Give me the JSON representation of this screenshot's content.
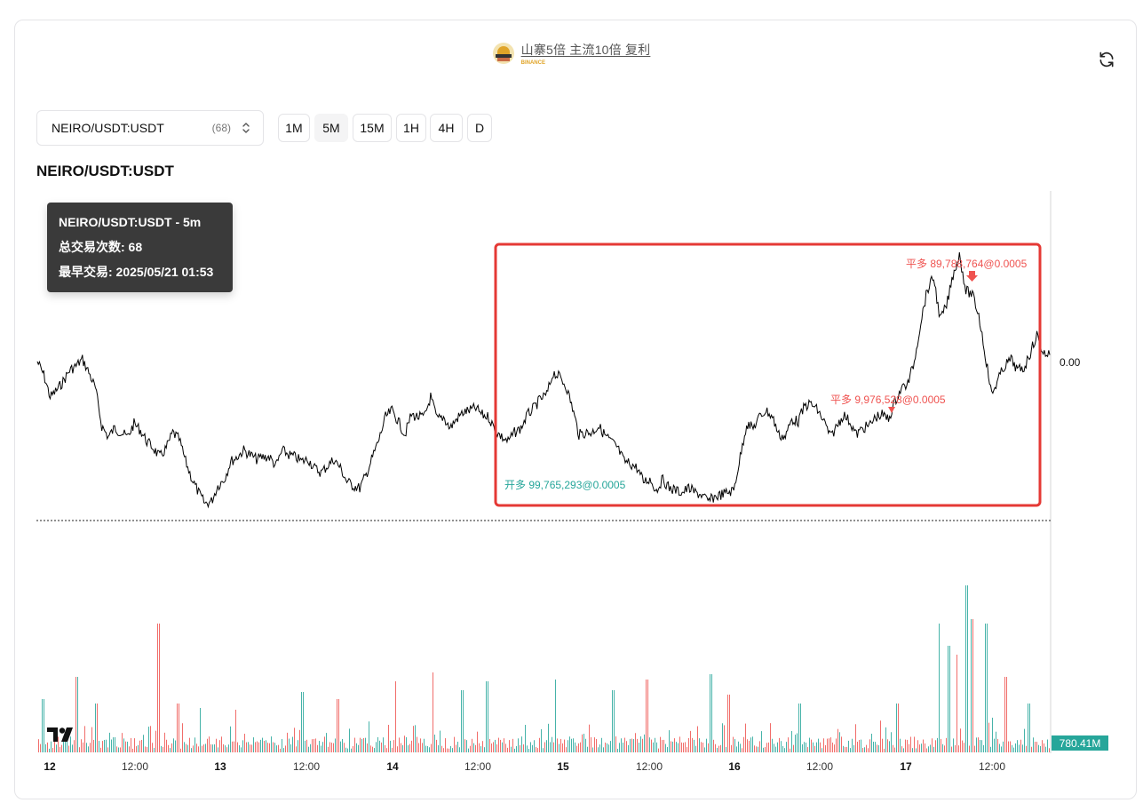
{
  "header": {
    "title": "山寨5倍 主流10倍 复利",
    "subtitle": "BINANCE"
  },
  "pair_selector": {
    "value": "NEIRO/USDT:USDT",
    "count": "(68)"
  },
  "timeframes": [
    {
      "label": "1M",
      "active": false
    },
    {
      "label": "5M",
      "active": true
    },
    {
      "label": "15M",
      "active": false
    },
    {
      "label": "1H",
      "active": false
    },
    {
      "label": "4H",
      "active": false
    },
    {
      "label": "D",
      "active": false
    }
  ],
  "chart_title": "NEIRO/USDT:USDT",
  "tooltip": {
    "line1": "NEIRO/USDT:USDT - 5m",
    "line2": "总交易次数: 68",
    "line3": "最早交易: 2025/05/21 01:53"
  },
  "chart_data": {
    "type": "line",
    "series": [
      {
        "values": [
          0.0,
          -0.6,
          -1.6,
          -1.3,
          -0.9,
          -0.4,
          -0.2,
          0.1,
          -0.5,
          -1.2,
          -2.9,
          -3.4,
          -3.0,
          -3.2,
          -3.4,
          -2.8,
          -3.1,
          -3.6,
          -3.9,
          -4.3,
          -3.9,
          -3.2,
          -3.5,
          -4.5,
          -5.3,
          -5.9,
          -6.4,
          -6.3,
          -5.6,
          -5.3,
          -4.5,
          -4.3,
          -4.0,
          -4.2,
          -4.4,
          -4.3,
          -4.3,
          -4.7,
          -4.0,
          -4.2,
          -4.3,
          -4.5,
          -4.4,
          -4.8,
          -5.0,
          -4.7,
          -4.4,
          -4.8,
          -5.4,
          -5.6,
          -5.7,
          -5.1,
          -4.3,
          -3.5,
          -2.5,
          -2.2,
          -2.7,
          -3.3,
          -2.4,
          -2.5,
          -2.5,
          -1.6,
          -2.6,
          -2.5,
          -3.0,
          -2.6,
          -2.3,
          -2.2,
          -2.1,
          -2.4,
          -2.5,
          -3.1,
          -3.4,
          -3.6,
          -3.2,
          -3.0,
          -2.4,
          -2.1,
          -1.7,
          -1.5,
          -0.5,
          -0.7,
          -1.1,
          -2.1,
          -3.3,
          -3.2,
          -3.2,
          -2.9,
          -3.3,
          -3.6,
          -3.9,
          -4.5,
          -4.6,
          -4.8,
          -5.4,
          -5.3,
          -5.8,
          -5.3,
          -5.7,
          -5.8,
          -5.9,
          -5.7,
          -5.9,
          -6.0,
          -6.3,
          -6.1,
          -6.0,
          -5.9,
          -5.8,
          -4.3,
          -2.8,
          -3.0,
          -2.5,
          -2.2,
          -2.5,
          -3.3,
          -3.4,
          -2.6,
          -2.7,
          -2.0,
          -1.9,
          -2.2,
          -2.7,
          -3.4,
          -2.9,
          -2.4,
          -2.7,
          -3.3,
          -3.0,
          -2.9,
          -2.5,
          -2.4,
          -2.6,
          -1.8,
          -1.2,
          -1.0,
          0.0,
          1.8,
          3.2,
          3.8,
          1.9,
          2.5,
          3.9,
          4.8,
          3.2,
          3.0,
          2.1,
          0.3,
          -1.5,
          -0.8,
          -0.2,
          0.1,
          -0.4,
          -0.3,
          0.4,
          1.2,
          0.4,
          0.3
        ]
      }
    ],
    "x_ticks": [
      "12",
      "12:00",
      "13",
      "12:00",
      "14",
      "12:00",
      "15",
      "12:00",
      "16",
      "12:00",
      "17",
      "12:00"
    ],
    "price_label": "0.00",
    "volume_label": "780.41M",
    "annotations": [
      {
        "text": "开多 99,765,293@0.0005",
        "kind": "open-long",
        "color": "#26a69a"
      },
      {
        "text": "平多 9,976,528@0.0005",
        "kind": "close-long",
        "color": "#ef5350"
      },
      {
        "text": "平多 89,788,764@0.0005",
        "kind": "close-long",
        "color": "#ef5350"
      }
    ],
    "colors": {
      "up": "#26a69a",
      "down": "#ef5350",
      "line": "#000000",
      "highlight": "#e53935"
    }
  }
}
